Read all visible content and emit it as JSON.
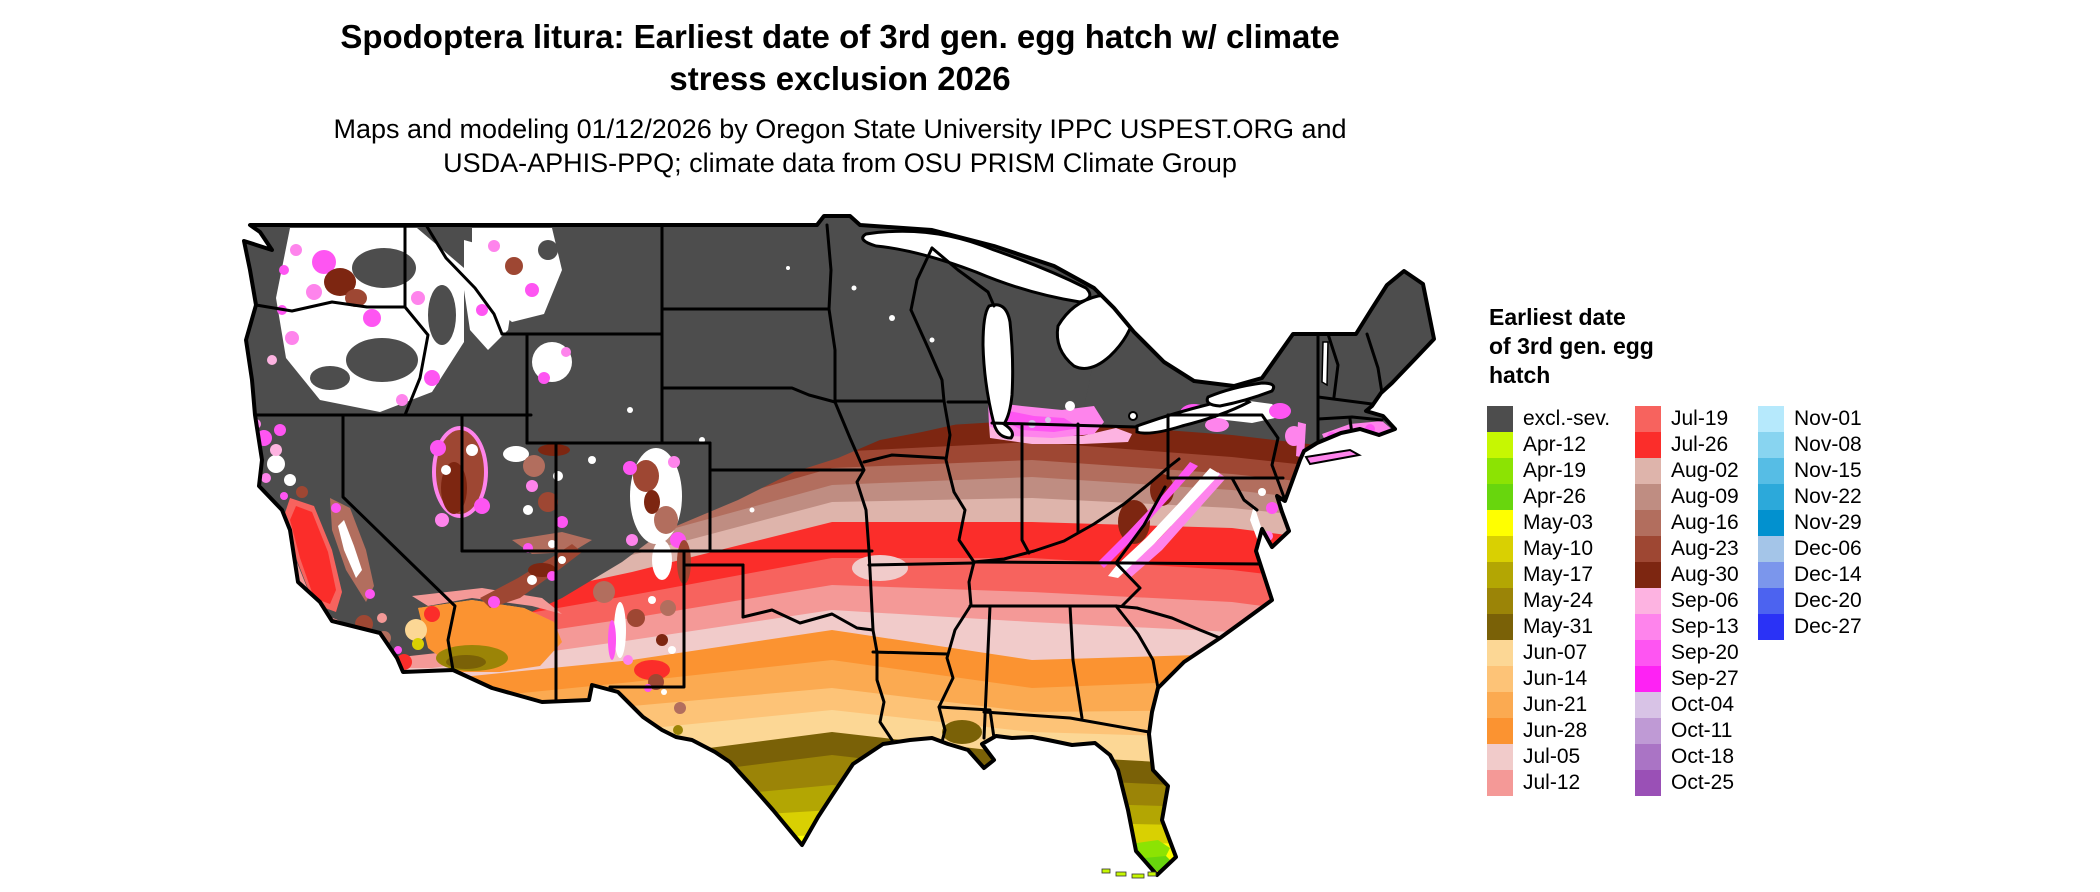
{
  "title": {
    "line1": "Spodoptera litura: Earliest date of 3rd gen. egg hatch w/ climate",
    "line2": "stress exclusion 2026"
  },
  "subtitle": {
    "line1": "Maps and modeling 01/12/2026 by Oregon State University IPPC USPEST.ORG and",
    "line2": "USDA-APHIS-PPQ; climate data from OSU PRISM Climate Group"
  },
  "legend": {
    "title_line1": "Earliest date",
    "title_line2": "of 3rd gen. egg",
    "title_line3": "hatch",
    "columns": [
      [
        {
          "label": "excl.-sev.",
          "color": "#4d4d4d"
        },
        {
          "label": "Apr-12",
          "color": "#c6f702"
        },
        {
          "label": "Apr-19",
          "color": "#8ce303"
        },
        {
          "label": "Apr-26",
          "color": "#68d60d"
        },
        {
          "label": "May-03",
          "color": "#ffff00"
        },
        {
          "label": "May-10",
          "color": "#d9d002"
        },
        {
          "label": "May-17",
          "color": "#b3a603"
        },
        {
          "label": "May-24",
          "color": "#9b8407"
        },
        {
          "label": "May-31",
          "color": "#7a6107"
        },
        {
          "label": "Jun-07",
          "color": "#fcd795"
        },
        {
          "label": "Jun-14",
          "color": "#fdc377"
        },
        {
          "label": "Jun-21",
          "color": "#fbaa51"
        },
        {
          "label": "Jun-28",
          "color": "#fb9331"
        },
        {
          "label": "Jul-05",
          "color": "#f1cbca"
        },
        {
          "label": "Jul-12",
          "color": "#f49997"
        }
      ],
      [
        {
          "label": "Jul-19",
          "color": "#f7635e"
        },
        {
          "label": "Jul-26",
          "color": "#fb2d2a"
        },
        {
          "label": "Aug-02",
          "color": "#deb4ab"
        },
        {
          "label": "Aug-09",
          "color": "#bf8d82"
        },
        {
          "label": "Aug-16",
          "color": "#b26e5e"
        },
        {
          "label": "Aug-23",
          "color": "#9e4733"
        },
        {
          "label": "Aug-30",
          "color": "#7d2611"
        },
        {
          "label": "Sep-06",
          "color": "#fdb3e1"
        },
        {
          "label": "Sep-13",
          "color": "#fe84ec"
        },
        {
          "label": "Sep-20",
          "color": "#fe55f2"
        },
        {
          "label": "Sep-27",
          "color": "#fe22f4"
        },
        {
          "label": "Oct-04",
          "color": "#d8c3e6"
        },
        {
          "label": "Oct-11",
          "color": "#bf9ad5"
        },
        {
          "label": "Oct-18",
          "color": "#aa74c5"
        },
        {
          "label": "Oct-25",
          "color": "#9a50b6"
        }
      ],
      [
        {
          "label": "Nov-01",
          "color": "#b6e9fc"
        },
        {
          "label": "Nov-08",
          "color": "#88d4f0"
        },
        {
          "label": "Nov-15",
          "color": "#56bde5"
        },
        {
          "label": "Nov-22",
          "color": "#2ca9da"
        },
        {
          "label": "Nov-29",
          "color": "#0291cf"
        },
        {
          "label": "Dec-06",
          "color": "#a4c5e8"
        },
        {
          "label": "Dec-14",
          "color": "#7b96ec"
        },
        {
          "label": "Dec-20",
          "color": "#4c63f0"
        },
        {
          "label": "Dec-27",
          "color": "#2a32f6"
        }
      ]
    ]
  },
  "map_colors": {
    "excluded_land": "#4d4d4d",
    "state_border": "#000000",
    "water_background": "#ffffff"
  }
}
